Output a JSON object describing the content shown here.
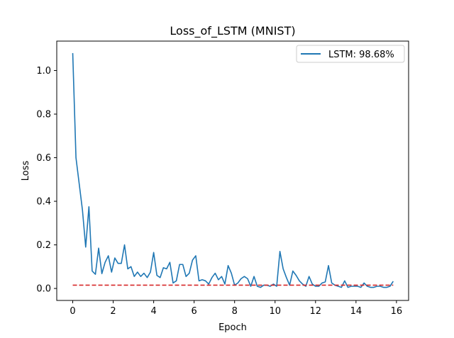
{
  "chart_data": {
    "type": "line",
    "title": "Loss_of_LSTM (MNIST)",
    "xlabel": "Epoch",
    "ylabel": "Loss",
    "xlim": [
      -0.79,
      16.6
    ],
    "ylim": [
      -0.055,
      1.135
    ],
    "xticks": [
      0,
      2,
      4,
      6,
      8,
      10,
      12,
      14,
      16
    ],
    "xtick_labels": [
      "0",
      "2",
      "4",
      "6",
      "8",
      "10",
      "12",
      "14",
      "16"
    ],
    "yticks": [
      0.0,
      0.2,
      0.4,
      0.6,
      0.8,
      1.0
    ],
    "ytick_labels": [
      "0.0",
      "0.2",
      "0.4",
      "0.6",
      "0.8",
      "1.0"
    ],
    "grid": false,
    "legend_position": "top-right",
    "series": [
      {
        "name": "LSTM: 98.68%",
        "color": "#1f77b4",
        "style": "solid",
        "x": [
          0,
          0.16,
          0.32,
          0.48,
          0.64,
          0.8,
          0.96,
          1.12,
          1.28,
          1.44,
          1.6,
          1.76,
          1.92,
          2.08,
          2.24,
          2.4,
          2.56,
          2.72,
          2.88,
          3.04,
          3.2,
          3.36,
          3.52,
          3.68,
          3.84,
          4.0,
          4.16,
          4.32,
          4.48,
          4.64,
          4.8,
          4.96,
          5.12,
          5.28,
          5.44,
          5.6,
          5.76,
          5.92,
          6.08,
          6.24,
          6.4,
          6.56,
          6.72,
          6.88,
          7.04,
          7.2,
          7.36,
          7.52,
          7.68,
          7.84,
          8.0,
          8.16,
          8.32,
          8.48,
          8.64,
          8.8,
          8.96,
          9.12,
          9.28,
          9.44,
          9.6,
          9.76,
          9.92,
          10.08,
          10.24,
          10.4,
          10.56,
          10.72,
          10.88,
          11.04,
          11.2,
          11.36,
          11.52,
          11.68,
          11.84,
          12.0,
          12.16,
          12.32,
          12.48,
          12.64,
          12.8,
          12.96,
          13.12,
          13.28,
          13.44,
          13.6,
          13.76,
          13.92,
          14.08,
          14.24,
          14.4,
          14.56,
          14.72,
          14.88,
          15.04,
          15.2,
          15.36,
          15.52,
          15.68,
          15.84
        ],
        "y": [
          1.08,
          0.6,
          0.48,
          0.36,
          0.19,
          0.375,
          0.08,
          0.065,
          0.185,
          0.068,
          0.12,
          0.15,
          0.075,
          0.14,
          0.115,
          0.115,
          0.2,
          0.09,
          0.1,
          0.055,
          0.075,
          0.055,
          0.07,
          0.05,
          0.075,
          0.165,
          0.06,
          0.05,
          0.095,
          0.09,
          0.12,
          0.025,
          0.035,
          0.11,
          0.11,
          0.055,
          0.07,
          0.13,
          0.15,
          0.035,
          0.04,
          0.035,
          0.02,
          0.05,
          0.07,
          0.04,
          0.055,
          0.02,
          0.105,
          0.07,
          0.015,
          0.025,
          0.045,
          0.055,
          0.045,
          0.01,
          0.055,
          0.01,
          0.005,
          0.015,
          0.015,
          0.01,
          0.02,
          0.01,
          0.17,
          0.09,
          0.05,
          0.015,
          0.08,
          0.06,
          0.035,
          0.02,
          0.01,
          0.055,
          0.02,
          0.01,
          0.01,
          0.025,
          0.03,
          0.105,
          0.025,
          0.015,
          0.01,
          0.005,
          0.035,
          0.005,
          0.01,
          0.01,
          0.01,
          0.005,
          0.025,
          0.01,
          0.005,
          0.005,
          0.01,
          0.01,
          0.005,
          0.005,
          0.01,
          0.033
        ]
      },
      {
        "color": "#d62728",
        "style": "dashed",
        "x": [
          0,
          15.84
        ],
        "y": [
          0.015,
          0.015
        ]
      }
    ]
  }
}
